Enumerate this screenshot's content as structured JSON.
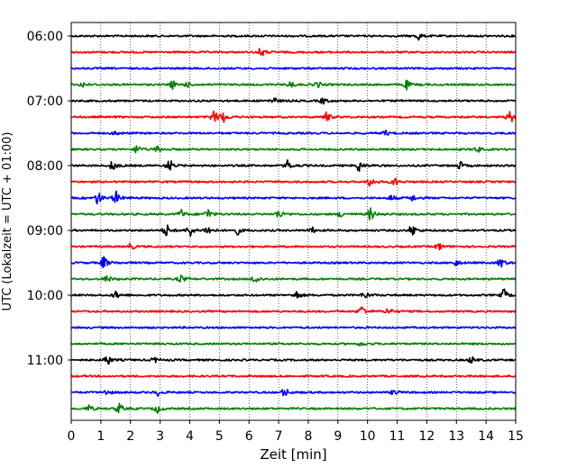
{
  "chart_data": {
    "type": "line",
    "title": "",
    "xlabel": "Zeit  [min]",
    "ylabel": "UTC (Lokalzeit = UTC + 01:00)",
    "xlim": [
      0,
      15
    ],
    "x_ticks": [
      "0",
      "1",
      "2",
      "3",
      "4",
      "5",
      "6",
      "7",
      "8",
      "9",
      "10",
      "11",
      "12",
      "13",
      "14",
      "15"
    ],
    "y_tick_labels": [
      "06:00",
      "07:00",
      "08:00",
      "09:00",
      "10:00",
      "11:00"
    ],
    "y_tick_trace_index": [
      0,
      4,
      8,
      12,
      16,
      20
    ],
    "grid": "vertical dotted lines at each minute",
    "trace_interval_minutes": 15,
    "start_time": "06:00",
    "trace_colors": [
      "#000000",
      "#ff0000",
      "#0000ff",
      "#008000"
    ],
    "traces": [
      {
        "start": "06:00",
        "events": [
          [
            11.7,
            0.5
          ]
        ]
      },
      {
        "start": "06:15",
        "events": [
          [
            6.4,
            0.6
          ]
        ]
      },
      {
        "start": "06:30",
        "events": []
      },
      {
        "start": "06:45",
        "events": [
          [
            0.4,
            0.4
          ],
          [
            3.4,
            0.5
          ],
          [
            3.9,
            0.3
          ],
          [
            7.4,
            0.4
          ],
          [
            8.3,
            0.4
          ],
          [
            11.3,
            0.6
          ]
        ]
      },
      {
        "start": "07:00",
        "events": [
          [
            6.8,
            0.5
          ],
          [
            8.5,
            0.4
          ]
        ]
      },
      {
        "start": "07:15",
        "events": [
          [
            4.8,
            0.9
          ],
          [
            5.1,
            0.7
          ],
          [
            8.6,
            0.7
          ],
          [
            14.8,
            0.8
          ]
        ]
      },
      {
        "start": "07:30",
        "events": [
          [
            1.5,
            0.3
          ],
          [
            10.6,
            0.3
          ]
        ]
      },
      {
        "start": "07:45",
        "events": [
          [
            2.2,
            0.6
          ],
          [
            2.9,
            0.4
          ],
          [
            13.7,
            0.4
          ]
        ]
      },
      {
        "start": "08:00",
        "events": [
          [
            1.4,
            0.7
          ],
          [
            3.3,
            0.8
          ],
          [
            7.3,
            0.8
          ],
          [
            9.7,
            0.8
          ],
          [
            13.1,
            0.5
          ]
        ]
      },
      {
        "start": "08:15",
        "events": [
          [
            10.1,
            0.7
          ],
          [
            10.9,
            0.5
          ]
        ]
      },
      {
        "start": "08:30",
        "events": [
          [
            0.9,
            0.9
          ],
          [
            1.5,
            0.8
          ],
          [
            10.8,
            0.4
          ],
          [
            11.5,
            0.4
          ]
        ]
      },
      {
        "start": "08:45",
        "events": [
          [
            3.7,
            0.6
          ],
          [
            4.6,
            0.7
          ],
          [
            7.0,
            0.6
          ],
          [
            9.1,
            0.4
          ],
          [
            10.1,
            0.9
          ]
        ]
      },
      {
        "start": "09:00",
        "events": [
          [
            3.2,
            0.8
          ],
          [
            4.0,
            0.8
          ],
          [
            4.6,
            0.6
          ],
          [
            5.6,
            0.5
          ],
          [
            8.1,
            0.4
          ],
          [
            11.5,
            0.8
          ]
        ]
      },
      {
        "start": "09:15",
        "events": [
          [
            2.0,
            0.4
          ],
          [
            12.4,
            0.5
          ]
        ]
      },
      {
        "start": "09:30",
        "events": [
          [
            1.1,
            0.9
          ],
          [
            13.0,
            0.4
          ],
          [
            14.5,
            0.7
          ]
        ]
      },
      {
        "start": "09:45",
        "events": [
          [
            1.2,
            0.5
          ],
          [
            3.7,
            0.5
          ],
          [
            6.2,
            0.7
          ]
        ]
      },
      {
        "start": "10:00",
        "events": [
          [
            1.5,
            0.5
          ],
          [
            7.6,
            0.6
          ],
          [
            9.9,
            0.5
          ],
          [
            14.6,
            0.8
          ]
        ]
      },
      {
        "start": "10:15",
        "events": [
          [
            9.8,
            0.8
          ],
          [
            10.7,
            0.5
          ]
        ]
      },
      {
        "start": "10:30",
        "events": []
      },
      {
        "start": "10:45",
        "events": [
          [
            9.8,
            0.3
          ]
        ]
      },
      {
        "start": "11:00",
        "events": [
          [
            1.2,
            0.7
          ],
          [
            2.8,
            0.3
          ],
          [
            13.5,
            0.4
          ]
        ]
      },
      {
        "start": "11:15",
        "events": []
      },
      {
        "start": "11:30",
        "events": [
          [
            1.2,
            0.4
          ],
          [
            2.9,
            0.4
          ],
          [
            7.2,
            0.6
          ],
          [
            10.9,
            0.4
          ]
        ]
      },
      {
        "start": "11:45",
        "events": [
          [
            0.6,
            0.5
          ],
          [
            1.6,
            0.7
          ],
          [
            2.9,
            0.5
          ]
        ]
      }
    ]
  }
}
